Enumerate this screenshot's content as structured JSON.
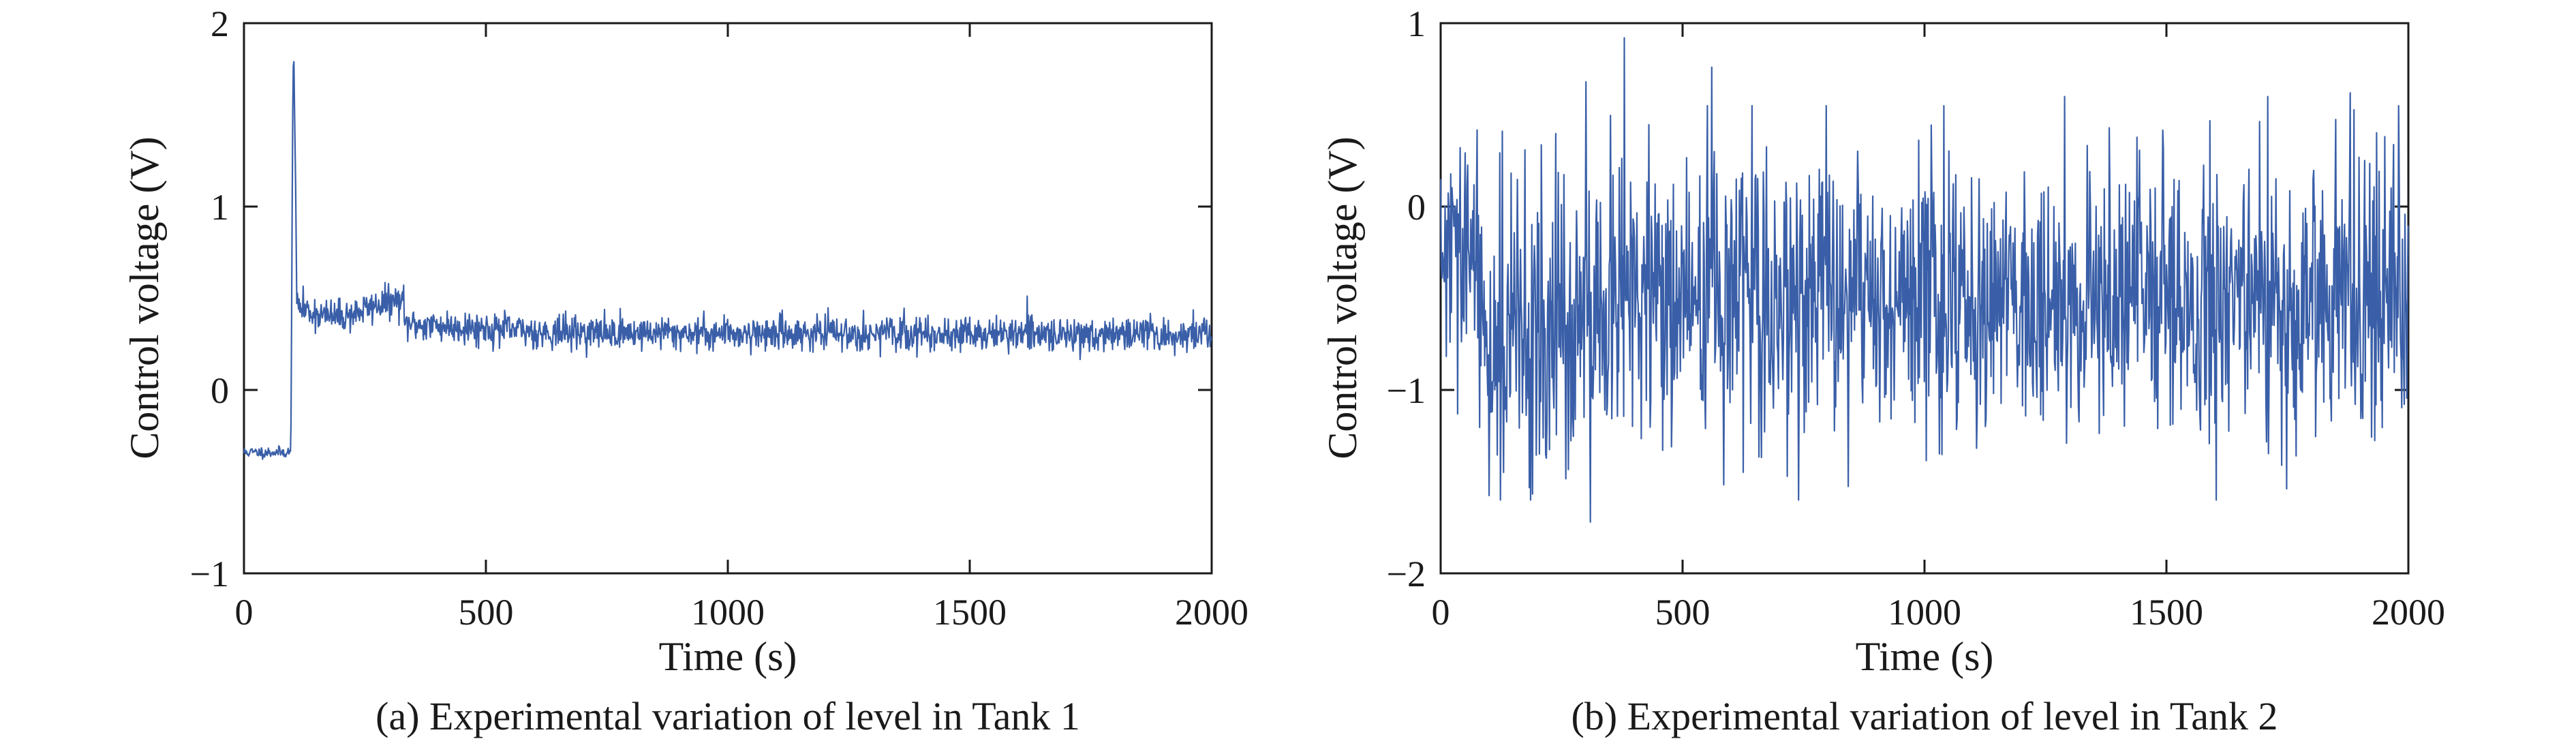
{
  "chart_data": [
    {
      "type": "line",
      "caption": "(a) Experimental variation of level in Tank 1",
      "xlabel": "Time (s)",
      "ylabel": "Control voltage (V)",
      "xlim": [
        0,
        2000
      ],
      "ylim": [
        -1,
        2
      ],
      "xticks": [
        0,
        500,
        1000,
        1500,
        2000
      ],
      "yticks": [
        -1,
        0,
        1,
        2
      ],
      "xtick_labels": [
        "0",
        "500",
        "1000",
        "1500",
        "2000"
      ],
      "ytick_labels": [
        "−1",
        "0",
        "1",
        "2"
      ],
      "grid": false,
      "legend": "none",
      "color": "#3a5fa8",
      "series": [
        {
          "description_points": [
            [
              0,
              -0.33
            ],
            [
              40,
              -0.35
            ],
            [
              80,
              -0.33
            ],
            [
              95,
              -0.3
            ],
            [
              100,
              1.65
            ],
            [
              102,
              1.9
            ],
            [
              105,
              1.6
            ],
            [
              110,
              0.3
            ],
            [
              120,
              0.42
            ],
            [
              150,
              0.45
            ],
            [
              200,
              0.46
            ],
            [
              250,
              0.47
            ],
            [
              280,
              0.5
            ],
            [
              300,
              0.42
            ],
            [
              400,
              0.36
            ],
            [
              500,
              0.33
            ],
            [
              700,
              0.31
            ],
            [
              1000,
              0.32
            ],
            [
              1300,
              0.3
            ],
            [
              1600,
              0.29
            ],
            [
              2000,
              0.31
            ]
          ]
        }
      ]
    },
    {
      "type": "line",
      "caption": "(b) Experimental variation of level in Tank 2",
      "xlabel": "Time (s)",
      "ylabel": "Control voltage (V)",
      "xlim": [
        0,
        2000
      ],
      "ylim": [
        -2,
        1
      ],
      "xticks": [
        0,
        500,
        1000,
        1500,
        2000
      ],
      "yticks": [
        -2,
        -1,
        0,
        1
      ],
      "xtick_labels": [
        "0",
        "500",
        "1000",
        "1500",
        "2000"
      ],
      "ytick_labels": [
        "−2",
        "−1",
        "0",
        "1"
      ],
      "grid": false,
      "legend": "none",
      "color": "#3a5fa8",
      "series": [
        {
          "description_points": [
            [
              0,
              -0.5
            ],
            [
              10,
              0.2
            ],
            [
              50,
              0.1
            ],
            [
              100,
              -0.8
            ],
            [
              150,
              -1.2
            ],
            [
              200,
              -1.3
            ],
            [
              250,
              -1.2
            ],
            [
              300,
              0.65
            ],
            [
              310,
              -1.65
            ],
            [
              380,
              0.9
            ],
            [
              560,
              0.75
            ],
            [
              800,
              -0.5
            ],
            [
              1000,
              -0.45
            ],
            [
              1250,
              -0.55
            ],
            [
              1500,
              -0.5
            ],
            [
              1700,
              0.55
            ],
            [
              1850,
              0.6
            ],
            [
              2000,
              -0.5
            ]
          ]
        }
      ]
    }
  ]
}
